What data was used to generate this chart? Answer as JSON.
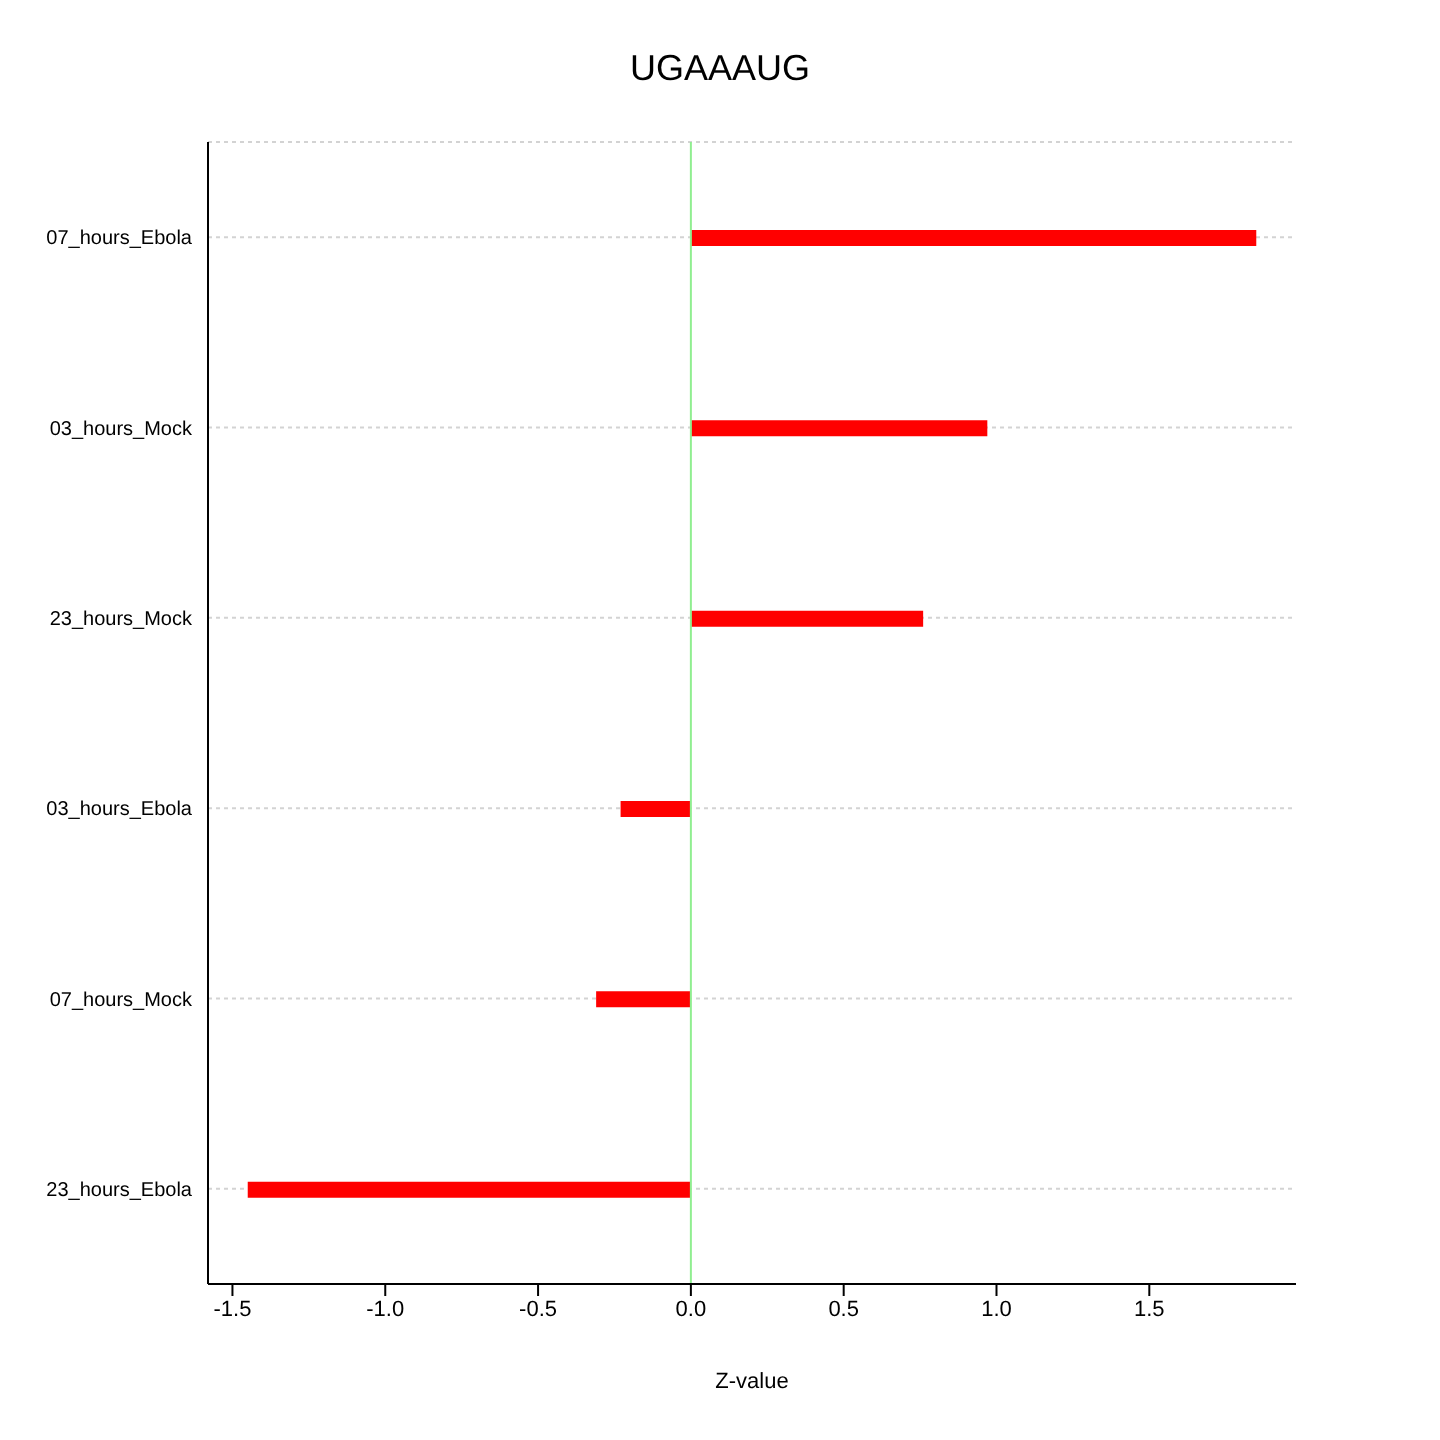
{
  "chart_data": {
    "type": "bar",
    "orientation": "horizontal",
    "title": "UGAAAUG",
    "xlabel": "Z-value",
    "categories": [
      "07_hours_Ebola",
      "03_hours_Mock",
      "23_hours_Mock",
      "03_hours_Ebola",
      "07_hours_Mock",
      "23_hours_Ebola"
    ],
    "values": [
      1.85,
      0.97,
      0.76,
      -0.23,
      -0.31,
      -1.45
    ],
    "color": "#ff0000",
    "xlim": [
      -1.58,
      1.98
    ],
    "xticks": [
      -1.5,
      {
        "value": -1,
        "label": "-1.0"
      },
      -0.5,
      {
        "value": 0,
        "label": "0.0"
      },
      0.5,
      {
        "value": 1,
        "label": "1.0"
      },
      1.5
    ],
    "ref_lines": [
      {
        "axis": "x",
        "value": 0,
        "color": "#90ee90"
      }
    ],
    "grid": "y"
  }
}
